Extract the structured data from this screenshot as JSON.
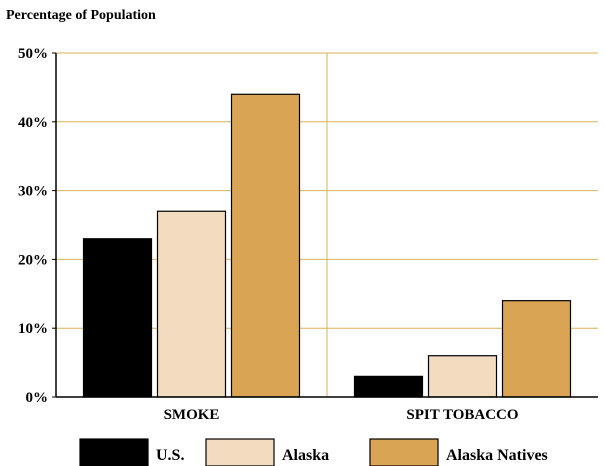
{
  "chart_data": {
    "type": "bar",
    "title": "",
    "ylabel": "Percentage of Population",
    "xlabel": "",
    "categories": [
      "SMOKE",
      "SPIT TOBACCO"
    ],
    "series": [
      {
        "name": "U.S.",
        "values": [
          23,
          3
        ],
        "color": "#000000"
      },
      {
        "name": "Alaska",
        "values": [
          27,
          6
        ],
        "color": "#f2dcc0"
      },
      {
        "name": "Alaska Natives",
        "values": [
          44,
          14
        ],
        "color": "#d9a454"
      }
    ],
    "ylim": [
      0,
      50
    ],
    "yticks": [
      0,
      10,
      20,
      30,
      40,
      50
    ],
    "ytick_labels": [
      "0%",
      "10%",
      "20%",
      "30%",
      "40%",
      "50%"
    ],
    "grid": true,
    "grid_color": "#d9b25a",
    "legend_position": "bottom"
  }
}
